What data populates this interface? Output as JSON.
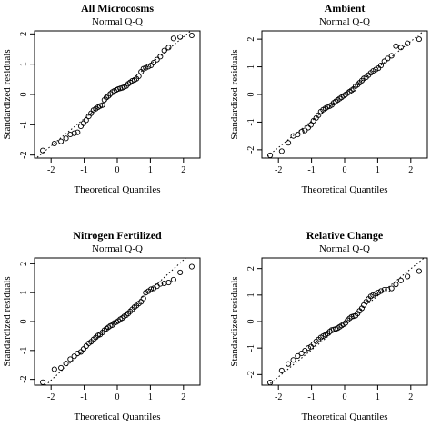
{
  "chart_data": [
    {
      "type": "scatter",
      "title": "All Microcosms",
      "subtitle": "Normal Q-Q",
      "xlabel": "Theoretical Quantiles",
      "ylabel": "Standardized residuals",
      "xlim": [
        -2.5,
        2.5
      ],
      "ylim": [
        -2.1,
        2.1
      ],
      "x_ticks": [
        -2,
        -1,
        0,
        1,
        2
      ],
      "y_ticks": [
        -2,
        -1,
        0,
        1,
        2
      ],
      "grid": false,
      "reference_line": {
        "style": "dotted",
        "points": [
          [
            -2.5,
            -2.15
          ],
          [
            2.5,
            2.35
          ]
        ]
      },
      "x": [
        -2.25,
        -1.9,
        -1.7,
        -1.55,
        -1.42,
        -1.3,
        -1.2,
        -1.1,
        -1.02,
        -0.94,
        -0.86,
        -0.79,
        -0.72,
        -0.65,
        -0.58,
        -0.52,
        -0.45,
        -0.39,
        -0.33,
        -0.27,
        -0.21,
        -0.15,
        -0.09,
        -0.03,
        0.03,
        0.09,
        0.15,
        0.21,
        0.27,
        0.33,
        0.39,
        0.45,
        0.52,
        0.58,
        0.65,
        0.72,
        0.79,
        0.86,
        0.94,
        1.02,
        1.1,
        1.2,
        1.3,
        1.42,
        1.55,
        1.7,
        1.9,
        2.25
      ],
      "y": [
        -1.85,
        -1.62,
        -1.55,
        -1.45,
        -1.32,
        -1.28,
        -1.25,
        -1.05,
        -0.95,
        -0.85,
        -0.72,
        -0.62,
        -0.52,
        -0.47,
        -0.42,
        -0.38,
        -0.35,
        -0.18,
        -0.1,
        -0.05,
        0.02,
        0.08,
        0.12,
        0.15,
        0.18,
        0.2,
        0.22,
        0.25,
        0.28,
        0.35,
        0.4,
        0.45,
        0.48,
        0.52,
        0.6,
        0.75,
        0.85,
        0.88,
        0.92,
        0.96,
        1.05,
        1.15,
        1.25,
        1.45,
        1.55,
        1.85,
        1.9,
        1.95
      ]
    },
    {
      "type": "scatter",
      "title": "Ambient",
      "subtitle": "Normal Q-Q",
      "xlabel": "Theoretical Quantiles",
      "ylabel": "Standardized residuals",
      "xlim": [
        -2.5,
        2.5
      ],
      "ylim": [
        -2.3,
        2.3
      ],
      "x_ticks": [
        -2,
        -1,
        0,
        1,
        2
      ],
      "y_ticks": [
        -2,
        -1,
        0,
        1,
        2
      ],
      "grid": false,
      "reference_line": {
        "style": "dotted",
        "points": [
          [
            -2.5,
            -2.4
          ],
          [
            2.5,
            2.4
          ]
        ]
      },
      "x": [
        -2.25,
        -1.9,
        -1.7,
        -1.55,
        -1.42,
        -1.3,
        -1.2,
        -1.1,
        -1.02,
        -0.94,
        -0.86,
        -0.79,
        -0.72,
        -0.65,
        -0.58,
        -0.52,
        -0.45,
        -0.39,
        -0.33,
        -0.27,
        -0.21,
        -0.15,
        -0.09,
        -0.03,
        0.03,
        0.09,
        0.15,
        0.21,
        0.27,
        0.33,
        0.39,
        0.45,
        0.52,
        0.58,
        0.65,
        0.72,
        0.79,
        0.86,
        0.94,
        1.02,
        1.1,
        1.2,
        1.3,
        1.42,
        1.55,
        1.7,
        1.9,
        2.25
      ],
      "y": [
        -2.2,
        -2.05,
        -1.75,
        -1.5,
        -1.45,
        -1.35,
        -1.3,
        -1.2,
        -1.1,
        -0.95,
        -0.85,
        -0.75,
        -0.62,
        -0.55,
        -0.5,
        -0.45,
        -0.42,
        -0.38,
        -0.3,
        -0.25,
        -0.2,
        -0.15,
        -0.1,
        -0.05,
        0.0,
        0.05,
        0.1,
        0.15,
        0.2,
        0.3,
        0.35,
        0.42,
        0.5,
        0.58,
        0.62,
        0.7,
        0.78,
        0.85,
        0.9,
        0.95,
        1.05,
        1.2,
        1.3,
        1.4,
        1.75,
        1.7,
        1.85,
        2.0
      ]
    },
    {
      "type": "scatter",
      "title": "Nitrogen Fertilized",
      "subtitle": "Normal Q-Q",
      "xlabel": "Theoretical Quantiles",
      "ylabel": "Standardized residuals",
      "xlim": [
        -2.5,
        2.5
      ],
      "ylim": [
        -2.2,
        2.2
      ],
      "x_ticks": [
        -2,
        -1,
        0,
        1,
        2
      ],
      "y_ticks": [
        -2,
        -1,
        0,
        1,
        2
      ],
      "grid": false,
      "reference_line": {
        "style": "dotted",
        "points": [
          [
            -2.5,
            -2.55
          ],
          [
            2.5,
            2.65
          ]
        ]
      },
      "x": [
        -2.25,
        -1.9,
        -1.7,
        -1.55,
        -1.42,
        -1.3,
        -1.2,
        -1.1,
        -1.02,
        -0.94,
        -0.86,
        -0.79,
        -0.72,
        -0.65,
        -0.58,
        -0.52,
        -0.45,
        -0.39,
        -0.33,
        -0.27,
        -0.21,
        -0.15,
        -0.09,
        -0.03,
        0.03,
        0.09,
        0.15,
        0.21,
        0.27,
        0.33,
        0.39,
        0.45,
        0.52,
        0.58,
        0.65,
        0.72,
        0.79,
        0.86,
        0.94,
        1.02,
        1.1,
        1.2,
        1.3,
        1.42,
        1.55,
        1.7,
        1.9,
        2.25
      ],
      "y": [
        -2.1,
        -1.65,
        -1.6,
        -1.45,
        -1.3,
        -1.2,
        -1.1,
        -1.05,
        -0.95,
        -0.85,
        -0.75,
        -0.7,
        -0.62,
        -0.55,
        -0.48,
        -0.45,
        -0.38,
        -0.3,
        -0.25,
        -0.2,
        -0.15,
        -0.12,
        -0.05,
        -0.02,
        0.02,
        0.08,
        0.12,
        0.18,
        0.22,
        0.28,
        0.35,
        0.42,
        0.5,
        0.55,
        0.62,
        0.68,
        0.8,
        1.0,
        1.05,
        1.12,
        1.15,
        1.22,
        1.3,
        1.32,
        1.35,
        1.45,
        1.7,
        1.9
      ]
    },
    {
      "type": "scatter",
      "title": "Relative Change",
      "subtitle": "Normal Q-Q",
      "xlabel": "Theoretical Quantiles",
      "ylabel": "Standardized residuals",
      "xlim": [
        -2.5,
        2.5
      ],
      "ylim": [
        -2.4,
        2.4
      ],
      "x_ticks": [
        -2,
        -1,
        0,
        1,
        2
      ],
      "y_ticks": [
        -2,
        -1,
        0,
        1,
        2
      ],
      "grid": false,
      "reference_line": {
        "style": "dotted",
        "points": [
          [
            -2.5,
            -2.6
          ],
          [
            2.5,
            2.5
          ]
        ]
      },
      "x": [
        -2.25,
        -1.9,
        -1.7,
        -1.55,
        -1.42,
        -1.3,
        -1.2,
        -1.1,
        -1.02,
        -0.94,
        -0.86,
        -0.79,
        -0.72,
        -0.65,
        -0.58,
        -0.52,
        -0.45,
        -0.39,
        -0.33,
        -0.27,
        -0.21,
        -0.15,
        -0.09,
        -0.03,
        0.03,
        0.09,
        0.15,
        0.21,
        0.27,
        0.33,
        0.39,
        0.45,
        0.52,
        0.58,
        0.65,
        0.72,
        0.79,
        0.86,
        0.94,
        1.02,
        1.1,
        1.2,
        1.3,
        1.42,
        1.55,
        1.7,
        1.9,
        2.25
      ],
      "y": [
        -2.3,
        -1.85,
        -1.6,
        -1.45,
        -1.3,
        -1.2,
        -1.1,
        -1.0,
        -0.95,
        -0.85,
        -0.75,
        -0.68,
        -0.6,
        -0.55,
        -0.5,
        -0.45,
        -0.38,
        -0.32,
        -0.3,
        -0.28,
        -0.25,
        -0.2,
        -0.15,
        -0.1,
        -0.05,
        0.05,
        0.12,
        0.18,
        0.2,
        0.22,
        0.3,
        0.4,
        0.5,
        0.62,
        0.75,
        0.85,
        0.95,
        1.0,
        1.05,
        1.1,
        1.15,
        1.2,
        1.2,
        1.25,
        1.4,
        1.55,
        1.7,
        1.9
      ]
    }
  ]
}
